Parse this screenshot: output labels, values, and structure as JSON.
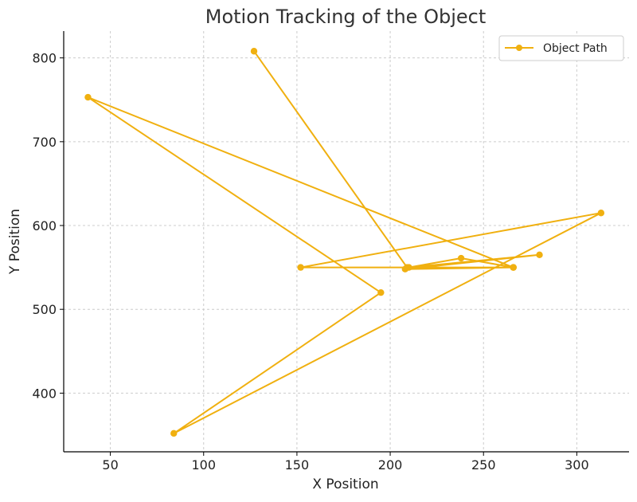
{
  "chart_data": {
    "type": "line",
    "title": "Motion Tracking of the Object",
    "xlabel": "X Position",
    "ylabel": "Y Position",
    "xlim": [
      25,
      328
    ],
    "ylim": [
      330,
      832
    ],
    "xticks": [
      50,
      100,
      150,
      200,
      250,
      300
    ],
    "yticks": [
      400,
      500,
      600,
      700,
      800
    ],
    "grid": true,
    "legend_position": "top-right",
    "color": "#F0B010",
    "series": [
      {
        "name": "Object Path",
        "x": [
          127,
          209,
          266,
          152,
          313,
          84,
          195,
          38,
          266,
          238,
          210,
          280,
          208,
          266
        ],
        "y": [
          808,
          550,
          550,
          550,
          615,
          352,
          520,
          753,
          550,
          561,
          550,
          565,
          548,
          550
        ]
      }
    ]
  }
}
